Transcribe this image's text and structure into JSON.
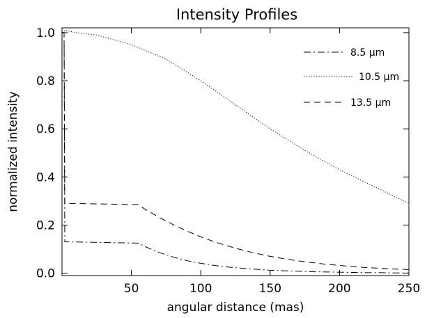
{
  "chart_data": {
    "type": "line",
    "title": "Intensity Profiles",
    "xlabel": "angular distance (mas)",
    "ylabel": "normalized intensity",
    "xlim": [
      0,
      250
    ],
    "ylim": [
      -0.01,
      1.02
    ],
    "xticks": [
      "50",
      "100",
      "150",
      "200",
      "250"
    ],
    "yticks": [
      "0.0",
      "0.2",
      "0.4",
      "0.6",
      "0.8",
      "1.0"
    ],
    "grid": false,
    "legend_position": "top-right",
    "series": [
      {
        "name": "8.5 μm",
        "style": "dash-dot",
        "x": [
          0,
          1.5,
          2,
          5,
          55,
          60,
          70,
          80,
          90,
          100,
          110,
          120,
          130,
          140,
          150,
          160,
          170,
          180,
          190,
          200,
          210,
          220,
          230,
          240,
          250
        ],
        "y": [
          1.0,
          1.0,
          0.13,
          0.13,
          0.125,
          0.11,
          0.086,
          0.067,
          0.052,
          0.041,
          0.032,
          0.025,
          0.02,
          0.016,
          0.012,
          0.01,
          0.008,
          0.006,
          0.005,
          0.004,
          0.003,
          0.002,
          0.002,
          0.001,
          0.001
        ]
      },
      {
        "name": "10.5 μm",
        "style": "dotted",
        "x": [
          0,
          2,
          10,
          25,
          50,
          75,
          100,
          125,
          150,
          175,
          200,
          225,
          250
        ],
        "y": [
          1.0,
          1.01,
          1.0,
          0.99,
          0.95,
          0.89,
          0.8,
          0.7,
          0.6,
          0.51,
          0.43,
          0.36,
          0.29
        ]
      },
      {
        "name": "13.5 μm",
        "style": "dashed",
        "x": [
          0,
          1.5,
          2,
          5,
          55,
          60,
          70,
          80,
          90,
          100,
          110,
          120,
          130,
          140,
          150,
          160,
          170,
          180,
          190,
          200,
          210,
          220,
          230,
          240,
          250
        ],
        "y": [
          1.0,
          1.0,
          0.29,
          0.29,
          0.285,
          0.265,
          0.232,
          0.202,
          0.175,
          0.151,
          0.13,
          0.112,
          0.096,
          0.082,
          0.07,
          0.06,
          0.051,
          0.044,
          0.037,
          0.032,
          0.027,
          0.023,
          0.02,
          0.017,
          0.015
        ]
      }
    ]
  }
}
